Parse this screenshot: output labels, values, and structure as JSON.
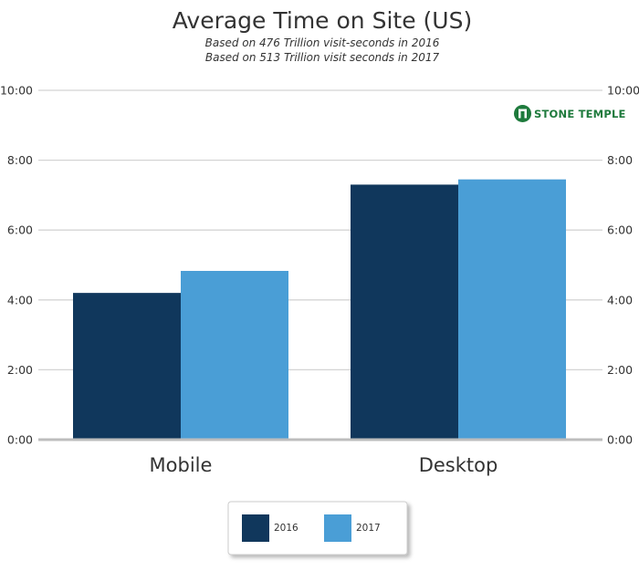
{
  "chart_data": {
    "type": "bar",
    "title": "Average Time on Site (US)",
    "subtitle": [
      "Based on 476 Trillion visit-seconds in 2016",
      "Based on 513 Trillion visit seconds in 2017"
    ],
    "categories": [
      "Mobile",
      "Desktop"
    ],
    "series": [
      {
        "name": "2016",
        "color": "#10375c",
        "values": [
          4.2,
          7.3
        ]
      },
      {
        "name": "2017",
        "color": "#4a9ed6",
        "values": [
          4.83,
          7.45
        ]
      }
    ],
    "ylim": [
      0,
      10
    ],
    "y_ticks": [
      {
        "value": 0,
        "label": "0:00"
      },
      {
        "value": 2,
        "label": "2:00"
      },
      {
        "value": 4,
        "label": "4:00"
      },
      {
        "value": 6,
        "label": "6:00"
      },
      {
        "value": 8,
        "label": "8:00"
      },
      {
        "value": 10,
        "label": "10:00"
      }
    ],
    "y_axis_both_sides": true,
    "grid": true,
    "legend_position": "bottom-center"
  },
  "brand": {
    "text": "STONE TEMPLE",
    "logo_icon": "stone-temple-logo-icon",
    "color": "#1e7a3c"
  }
}
